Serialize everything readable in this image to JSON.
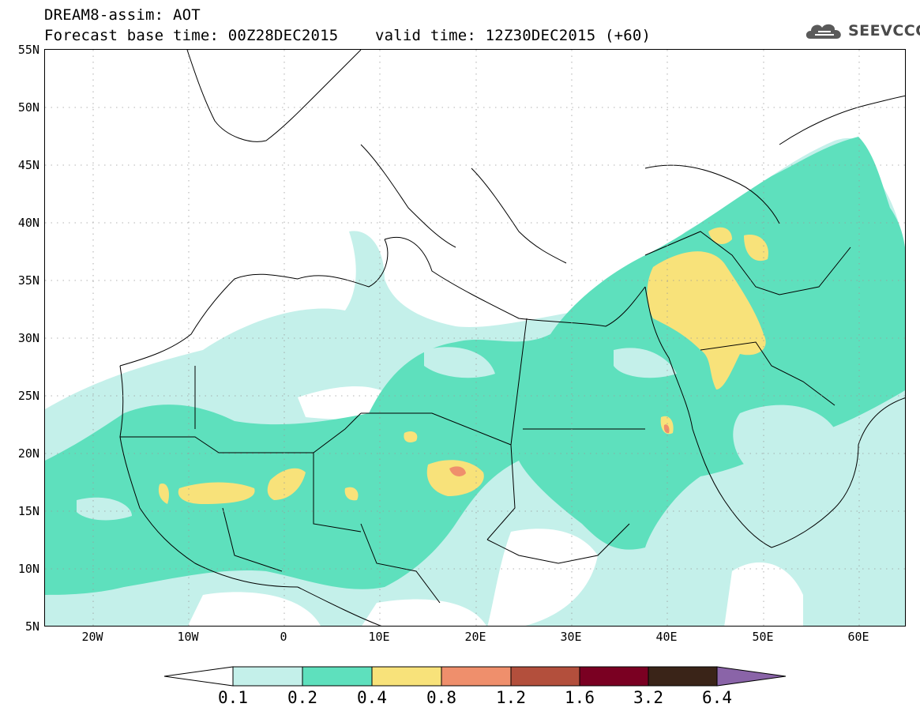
{
  "header": {
    "title_line1": "DREAM8-assim: AOT",
    "title_line2": "Forecast base time: 00Z28DEC2015    valid time: 12Z30DEC2015 (+60)",
    "logo_text": "SEEVCCC"
  },
  "map": {
    "lat_labels": [
      "55N",
      "50N",
      "45N",
      "40N",
      "35N",
      "30N",
      "25N",
      "20N",
      "15N",
      "10N",
      "5N"
    ],
    "lon_labels": [
      "20W",
      "10W",
      "0",
      "10E",
      "20E",
      "30E",
      "40E",
      "50E",
      "60E"
    ],
    "colors": {
      "level_0_1": "#c4f0ea",
      "level_0_2": "#5ee0bd",
      "level_0_4": "#f8e27a",
      "level_0_8": "#ef8f6c",
      "level_1_2": "#b34f3c",
      "level_1_6": "#7a0022",
      "level_3_2": "#3a2418",
      "level_6_4": "#8a64a8",
      "coast": "#000000"
    }
  },
  "colorbar": {
    "labels": [
      "0.1",
      "0.2",
      "0.4",
      "0.8",
      "1.2",
      "1.6",
      "3.2",
      "6.4"
    ]
  }
}
